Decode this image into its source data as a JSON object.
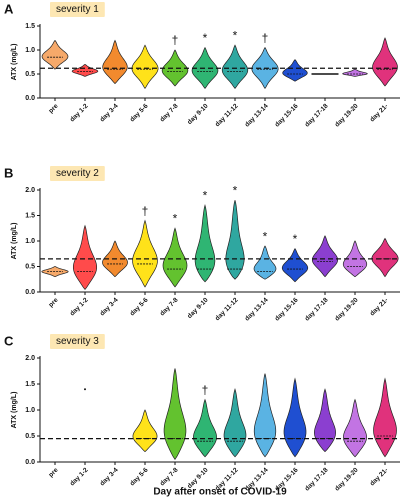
{
  "chart_data": [
    {
      "type": "violin",
      "panel": "A",
      "title": "severity 1",
      "ylabel": "ATX (mg/L)",
      "categories": [
        "pre",
        "day 1-2",
        "day 3-4",
        "day 5-6",
        "day 7-8",
        "day 9-10",
        "day 11-12",
        "day 13-14",
        "day 15-16",
        "day 17-18",
        "day 19-20",
        "day 21-"
      ],
      "colors": [
        "#f6a96a",
        "#ff4b4b",
        "#f28a2e",
        "#ffe21a",
        "#63c22f",
        "#2fb573",
        "#2fa7a0",
        "#5ab3e3",
        "#1f4fd1",
        "#8b3fd0",
        "#c274e3",
        "#e0327c"
      ],
      "mins": [
        0.6,
        0.45,
        0.3,
        0.2,
        0.25,
        0.2,
        0.2,
        0.2,
        0.35,
        0.5,
        0.45,
        0.25
      ],
      "medians": [
        0.85,
        0.55,
        0.6,
        0.6,
        0.55,
        0.55,
        0.55,
        0.6,
        0.5,
        0.5,
        0.5,
        0.6
      ],
      "maxs": [
        1.2,
        0.7,
        1.2,
        1.1,
        1.0,
        1.05,
        1.1,
        1.05,
        0.8,
        0.5,
        0.6,
        1.25
      ],
      "annotations": [
        null,
        null,
        null,
        null,
        "†",
        "*",
        "*",
        "†",
        null,
        null,
        null,
        null
      ],
      "reference_line": 0.62,
      "ylim": [
        0,
        1.5
      ],
      "yticks": [
        {
          "value": 0,
          "label": "0.0"
        },
        0.5,
        {
          "value": 1,
          "label": "1.0"
        },
        1.5
      ]
    },
    {
      "type": "violin",
      "panel": "B",
      "title": "severity 2",
      "ylabel": "ATX (mg/L)",
      "categories": [
        "pre",
        "day 1-2",
        "day 3-4",
        "day 5-6",
        "day 7-8",
        "day 9-10",
        "day 11-12",
        "day 13-14",
        "day 15-16",
        "day 17-18",
        "day 19-20",
        "day 21-"
      ],
      "colors": [
        "#f6a96a",
        "#ff4b4b",
        "#f28a2e",
        "#ffe21a",
        "#63c22f",
        "#2fb573",
        "#2fa7a0",
        "#5ab3e3",
        "#1f4fd1",
        "#8b3fd0",
        "#c274e3",
        "#e0327c"
      ],
      "mins": [
        0.3,
        0.05,
        0.3,
        0.1,
        0.1,
        0.2,
        0.25,
        0.25,
        0.2,
        0.3,
        0.3,
        0.3
      ],
      "medians": [
        0.4,
        0.4,
        0.55,
        0.55,
        0.45,
        0.45,
        0.45,
        0.4,
        0.45,
        0.6,
        0.5,
        0.65
      ],
      "maxs": [
        0.5,
        1.3,
        1.0,
        1.4,
        1.25,
        1.7,
        1.8,
        0.9,
        0.85,
        1.1,
        1.0,
        1.05
      ],
      "annotations": [
        null,
        null,
        null,
        "†",
        "*",
        "*",
        "*",
        "*",
        "*",
        null,
        null,
        null
      ],
      "reference_line": 0.65,
      "ylim": [
        0,
        2
      ],
      "yticks": [
        {
          "value": 0,
          "label": "0.0"
        },
        0.5,
        {
          "value": 1,
          "label": "1.0"
        },
        1.5,
        {
          "value": 2,
          "label": "2.0"
        }
      ]
    },
    {
      "type": "violin",
      "panel": "C",
      "title": "severity 3",
      "ylabel": "ATX (mg/L)",
      "xlabel": "Day after onset of COVID-19",
      "categories": [
        "pre",
        "day 1-2",
        "day 3-4",
        "day 5-6",
        "day 7-8",
        "day 9-10",
        "day 11-12",
        "day 13-14",
        "day 15-16",
        "day 17-18",
        "day 19-20",
        "day 21-"
      ],
      "colors": [
        "#f6a96a",
        "#ff4b4b",
        "#f28a2e",
        "#ffe21a",
        "#63c22f",
        "#2fb573",
        "#2fa7a0",
        "#5ab3e3",
        "#1f4fd1",
        "#8b3fd0",
        "#c274e3",
        "#e0327c"
      ],
      "mins": [
        null,
        1.4,
        null,
        0.2,
        0.05,
        0.1,
        0.1,
        0.1,
        0.1,
        0.2,
        0.1,
        0.1
      ],
      "medians": [
        null,
        1.4,
        null,
        0.45,
        0.45,
        0.4,
        0.4,
        0.45,
        0.45,
        0.45,
        0.4,
        0.5
      ],
      "maxs": [
        null,
        1.4,
        null,
        1.0,
        1.8,
        1.2,
        1.4,
        1.7,
        1.6,
        1.4,
        1.2,
        1.6
      ],
      "annotations": [
        null,
        null,
        null,
        null,
        null,
        "†",
        null,
        null,
        null,
        null,
        null,
        null
      ],
      "reference_line": 0.45,
      "ylim": [
        0,
        2
      ],
      "yticks": [
        {
          "value": 0,
          "label": "0.0"
        },
        0.5,
        {
          "value": 1,
          "label": "1.0"
        },
        1.5,
        {
          "value": 2,
          "label": "2.0"
        }
      ]
    }
  ]
}
